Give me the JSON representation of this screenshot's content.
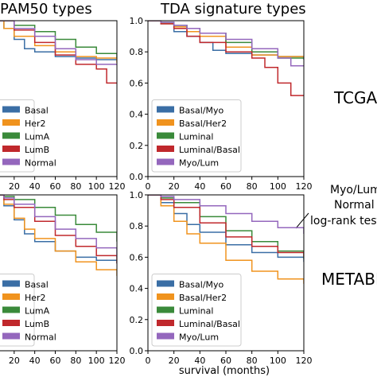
{
  "figure": {
    "xlabel": "survival (months)",
    "side_labels": [
      "TCGA",
      "METABRIC"
    ],
    "annotation_lines": [
      "Myo/Lum",
      "Normal",
      "log-rank test"
    ],
    "colors": {
      "Basal/Myo": "#3a6ea5",
      "Basal/Her2": "#f0931e",
      "Luminal": "#3a8a3a",
      "Luminal/Basal": "#c0282c",
      "Myo/Lum": "#9467bd",
      "Basal": "#3a6ea5",
      "Her2": "#f0931e",
      "LumA": "#3a8a3a",
      "LumB": "#c0282c",
      "Normal": "#9467bd"
    }
  },
  "chart_data": [
    {
      "type": "line",
      "title": "PAM50 types",
      "xlabel": "",
      "ylabel": "",
      "xlim": [
        0,
        120
      ],
      "ylim": [
        0.0,
        1.0
      ],
      "xticks": [
        0,
        20,
        40,
        60,
        80,
        100,
        120
      ],
      "yticks": [
        0.0,
        0.2,
        0.4,
        0.6,
        0.8,
        1.0
      ],
      "legend_location": "lower-left",
      "series": [
        {
          "name": "Basal",
          "x": [
            0,
            10,
            20,
            30,
            40,
            60,
            80,
            100,
            120
          ],
          "y": [
            1.0,
            0.95,
            0.88,
            0.82,
            0.8,
            0.77,
            0.76,
            0.75,
            0.75
          ]
        },
        {
          "name": "Her2",
          "x": [
            0,
            10,
            20,
            40,
            60,
            80,
            100,
            120
          ],
          "y": [
            1.0,
            0.95,
            0.9,
            0.84,
            0.8,
            0.77,
            0.76,
            0.73
          ]
        },
        {
          "name": "LumA",
          "x": [
            0,
            20,
            40,
            60,
            80,
            100,
            120
          ],
          "y": [
            1.0,
            0.97,
            0.93,
            0.88,
            0.83,
            0.79,
            0.76
          ]
        },
        {
          "name": "LumB",
          "x": [
            0,
            20,
            40,
            60,
            80,
            100,
            110,
            120
          ],
          "y": [
            1.0,
            0.94,
            0.86,
            0.78,
            0.72,
            0.69,
            0.6,
            0.6
          ]
        },
        {
          "name": "Normal",
          "x": [
            0,
            20,
            40,
            60,
            80,
            100,
            120
          ],
          "y": [
            1.0,
            0.95,
            0.9,
            0.82,
            0.75,
            0.72,
            0.72
          ]
        }
      ]
    },
    {
      "type": "line",
      "title": "TDA signature types",
      "xlabel": "",
      "ylabel": "",
      "xlim": [
        0,
        120
      ],
      "ylim": [
        0.0,
        1.0
      ],
      "xticks": [
        0,
        20,
        40,
        60,
        80,
        100,
        120
      ],
      "yticks": [
        0.0,
        0.2,
        0.4,
        0.6,
        0.8,
        1.0
      ],
      "legend_location": "lower-left",
      "series": [
        {
          "name": "Basal/Myo",
          "x": [
            0,
            10,
            20,
            30,
            40,
            50,
            60,
            80,
            100,
            120
          ],
          "y": [
            1.0,
            0.98,
            0.93,
            0.9,
            0.86,
            0.81,
            0.79,
            0.78,
            0.77,
            0.75
          ]
        },
        {
          "name": "Basal/Her2",
          "x": [
            0,
            10,
            20,
            30,
            40,
            60,
            80,
            100,
            120
          ],
          "y": [
            1.0,
            0.98,
            0.96,
            0.93,
            0.9,
            0.83,
            0.78,
            0.77,
            0.77
          ]
        },
        {
          "name": "Luminal",
          "x": [
            0,
            10,
            20,
            30,
            40,
            60,
            80,
            100,
            120
          ],
          "y": [
            1.0,
            0.99,
            0.97,
            0.95,
            0.92,
            0.86,
            0.8,
            0.76,
            0.76
          ]
        },
        {
          "name": "Luminal/Basal",
          "x": [
            0,
            10,
            20,
            30,
            40,
            60,
            80,
            90,
            100,
            110,
            120
          ],
          "y": [
            1.0,
            0.98,
            0.95,
            0.9,
            0.86,
            0.8,
            0.76,
            0.7,
            0.6,
            0.52,
            0.52
          ]
        },
        {
          "name": "Myo/Lum",
          "x": [
            0,
            10,
            20,
            30,
            40,
            60,
            80,
            100,
            110,
            120
          ],
          "y": [
            1.0,
            0.99,
            0.97,
            0.95,
            0.92,
            0.88,
            0.82,
            0.76,
            0.71,
            0.71
          ]
        }
      ]
    },
    {
      "type": "line",
      "title": "",
      "xlabel": "",
      "ylabel": "",
      "xlim": [
        0,
        120
      ],
      "ylim": [
        0.0,
        1.0
      ],
      "xticks": [
        0,
        20,
        40,
        60,
        80,
        100,
        120
      ],
      "yticks": [
        0.0,
        0.2,
        0.4,
        0.6,
        0.8,
        1.0
      ],
      "legend_location": "lower-left",
      "series": [
        {
          "name": "Basal",
          "x": [
            0,
            10,
            20,
            30,
            40,
            60,
            80,
            100,
            120
          ],
          "y": [
            1.0,
            0.93,
            0.84,
            0.75,
            0.7,
            0.64,
            0.6,
            0.58,
            0.56
          ]
        },
        {
          "name": "Her2",
          "x": [
            0,
            10,
            20,
            30,
            40,
            60,
            80,
            100,
            120
          ],
          "y": [
            1.0,
            0.94,
            0.85,
            0.78,
            0.72,
            0.64,
            0.57,
            0.52,
            0.48
          ]
        },
        {
          "name": "LumA",
          "x": [
            0,
            10,
            20,
            40,
            60,
            80,
            100,
            120
          ],
          "y": [
            1.0,
            0.99,
            0.97,
            0.92,
            0.87,
            0.81,
            0.76,
            0.7
          ]
        },
        {
          "name": "LumB",
          "x": [
            0,
            10,
            20,
            40,
            60,
            80,
            100,
            120
          ],
          "y": [
            1.0,
            0.97,
            0.92,
            0.83,
            0.74,
            0.67,
            0.61,
            0.56
          ]
        },
        {
          "name": "Normal",
          "x": [
            0,
            10,
            20,
            40,
            60,
            80,
            100,
            120
          ],
          "y": [
            1.0,
            0.98,
            0.94,
            0.86,
            0.78,
            0.72,
            0.66,
            0.6
          ]
        }
      ]
    },
    {
      "type": "line",
      "title": "",
      "xlabel": "",
      "ylabel": "",
      "xlim": [
        0,
        120
      ],
      "ylim": [
        0.0,
        1.0
      ],
      "xticks": [
        0,
        20,
        40,
        60,
        80,
        100,
        120
      ],
      "yticks": [
        0.0,
        0.2,
        0.4,
        0.6,
        0.8,
        1.0
      ],
      "legend_location": "lower-left",
      "series": [
        {
          "name": "Basal/Myo",
          "x": [
            0,
            10,
            20,
            30,
            40,
            60,
            80,
            100,
            120
          ],
          "y": [
            1.0,
            0.95,
            0.88,
            0.81,
            0.76,
            0.68,
            0.63,
            0.6,
            0.57
          ]
        },
        {
          "name": "Basal/Her2",
          "x": [
            0,
            10,
            20,
            30,
            40,
            60,
            80,
            100,
            120
          ],
          "y": [
            1.0,
            0.93,
            0.83,
            0.75,
            0.69,
            0.58,
            0.51,
            0.46,
            0.43
          ]
        },
        {
          "name": "Luminal",
          "x": [
            0,
            10,
            20,
            40,
            60,
            80,
            100,
            120
          ],
          "y": [
            1.0,
            0.98,
            0.95,
            0.86,
            0.77,
            0.7,
            0.64,
            0.59
          ]
        },
        {
          "name": "Luminal/Basal",
          "x": [
            0,
            10,
            20,
            40,
            60,
            80,
            100,
            120
          ],
          "y": [
            1.0,
            0.97,
            0.92,
            0.82,
            0.73,
            0.67,
            0.63,
            0.6
          ]
        },
        {
          "name": "Myo/Lum",
          "x": [
            0,
            10,
            20,
            40,
            60,
            80,
            100,
            120
          ],
          "y": [
            1.0,
            0.99,
            0.97,
            0.93,
            0.88,
            0.83,
            0.79,
            0.75
          ]
        }
      ]
    }
  ]
}
